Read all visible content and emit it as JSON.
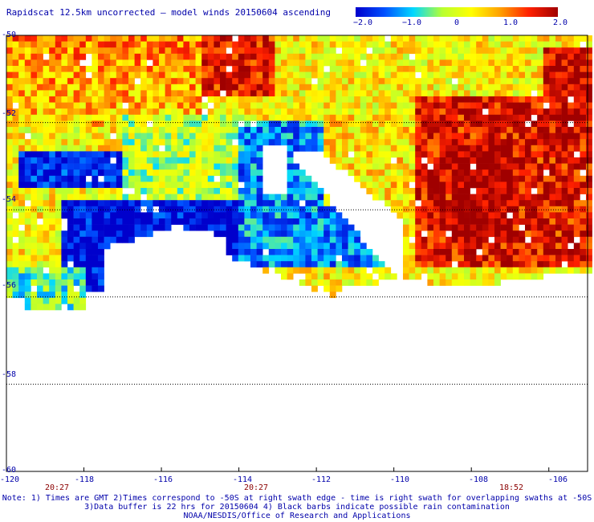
{
  "title": "Rapidscat 12.5km uncorrected — model winds 20150604 ascending",
  "colorbar": {
    "ticks": [
      "−2.0",
      "−1.0",
      "0",
      "1.0",
      "2.0"
    ],
    "tick_values": [
      -2.0,
      -1.0,
      0,
      1.0,
      2.0
    ],
    "colors": [
      "#0000cc",
      "#0050ff",
      "#00d8ff",
      "#b8ff30",
      "#ffff00",
      "#ffa000",
      "#ff2000",
      "#a00000"
    ]
  },
  "map": {
    "lon_range": [
      -120,
      -105
    ],
    "lat_range": [
      -60,
      -50
    ],
    "lon_ticks": [
      "-120",
      "-118",
      "-116",
      "-114",
      "-112",
      "-110",
      "-108",
      "-106"
    ],
    "lon_tick_values": [
      -120,
      -118,
      -116,
      -114,
      -112,
      -110,
      -108,
      -106
    ],
    "lat_ticks": [
      "-50",
      "-52",
      "-54",
      "-56",
      "-58",
      "-60"
    ],
    "lat_tick_values": [
      -50,
      -52,
      -54,
      -56,
      -58,
      -60
    ],
    "swath_times": [
      "20:27",
      "20:27",
      "18:52"
    ],
    "swath_time_lons": [
      -118.4,
      -113.8,
      -107.7
    ],
    "value_range": [
      -2.0,
      2.0
    ]
  },
  "notes": [
    "Note: 1) Times are GMT 2)Times correspond to -50S at right swath edge - time is right swath for overlapping swaths at -50S",
    "3)Data buffer is 22 hrs for 20150604 4) Black barbs indicate possible rain contamination",
    "NOAA/NESDIS/Office of Research and Applications"
  ]
}
